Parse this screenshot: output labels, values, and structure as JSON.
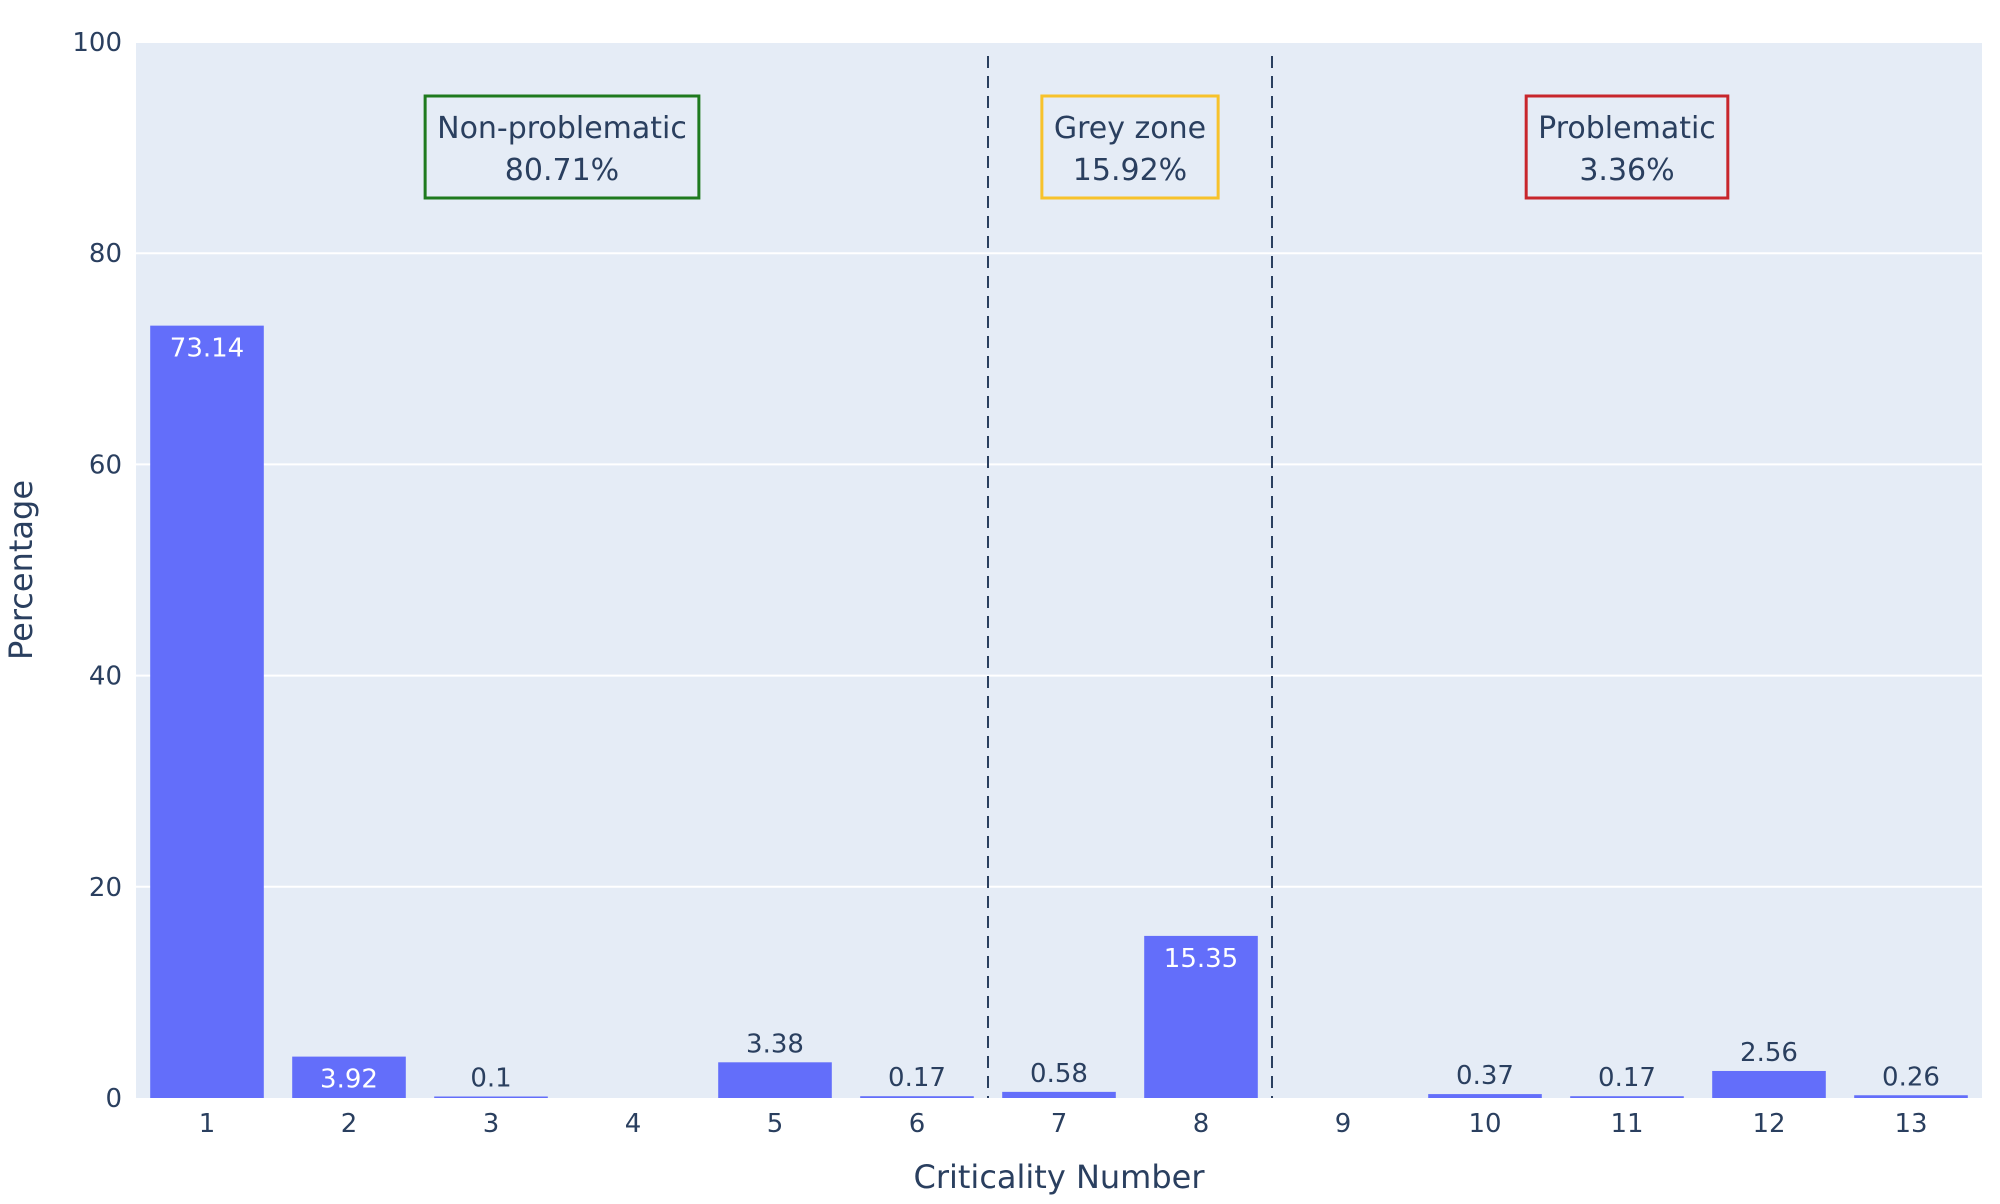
{
  "chart_data": {
    "type": "bar",
    "categories": [
      "1",
      "2",
      "3",
      "4",
      "5",
      "6",
      "7",
      "8",
      "9",
      "10",
      "11",
      "12",
      "13"
    ],
    "values": [
      73.14,
      3.92,
      0.1,
      0,
      3.38,
      0.17,
      0.58,
      15.35,
      0,
      0.37,
      0.17,
      2.56,
      0.26
    ],
    "data_labels": [
      "73.14",
      "3.92",
      "0.1",
      "",
      "3.38",
      "0.17",
      "0.58",
      "15.35",
      "",
      "0.37",
      "0.17",
      "2.56",
      "0.26"
    ],
    "xlabel": "Criticality Number",
    "ylabel": "Percentage",
    "ylim": [
      0,
      100
    ],
    "yticks": [
      "0",
      "20",
      "40",
      "60",
      "80",
      "100"
    ],
    "grid": true,
    "dividers_after_category": [
      "6",
      "8"
    ],
    "zones": [
      {
        "label": "Non-problematic",
        "percent": "80.71%",
        "color": "#1e7a1e"
      },
      {
        "label": "Grey zone",
        "percent": "15.92%",
        "color": "#f7c22b"
      },
      {
        "label": "Problematic",
        "percent": "3.36%",
        "color": "#c8262c"
      }
    ],
    "colors": {
      "bar": "#636efa",
      "plot_bg": "#e5ecf6",
      "text": "#2a3f5f",
      "divider": "#2a3f5f"
    }
  }
}
